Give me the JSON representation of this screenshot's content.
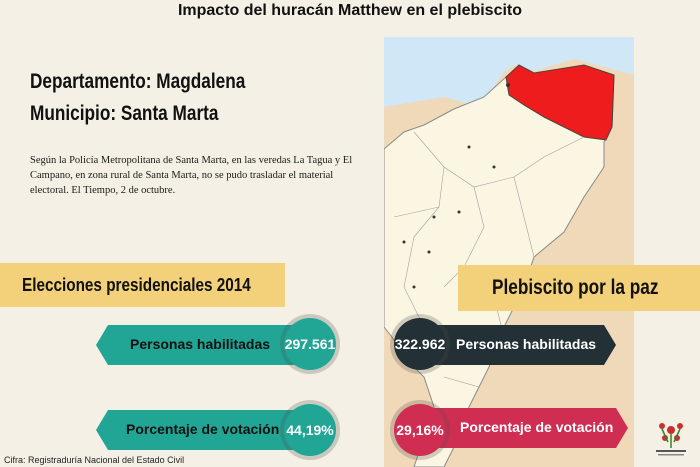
{
  "title": "Impacto del huracán Matthew en el plebiscito",
  "department": "Departamento: Magdalena",
  "municipality": "Municipio: Santa Marta",
  "description": "Según la Policía Metropolitana de Santa Marta, en las veredas La Tagua y El Campano, en zona rural de Santa Marta, no se pudo trasladar el material electoral. El Tiempo, 2 de octubre.",
  "elecciones": {
    "heading": "Elecciones presidenciales 2014",
    "habilitadas_label": "Personas habilitadas",
    "habilitadas_value": "297.561",
    "votacion_label": "Porcentaje de votación",
    "votacion_value": "44,19%"
  },
  "plebiscito": {
    "heading": "Plebiscito por la paz",
    "habilitadas_label": "Personas habilitadas",
    "habilitadas_value": "322.962",
    "votacion_label": "Porcentaje de votación",
    "votacion_value": "29,16%"
  },
  "source": "Cifra: Registraduría Nacional del Estado Civil",
  "colors": {
    "teal": "#21a595",
    "dark": "#233035",
    "red": "#d02d52",
    "highlight": "#f3d07a",
    "map_highlight": "#ee1c1c"
  }
}
